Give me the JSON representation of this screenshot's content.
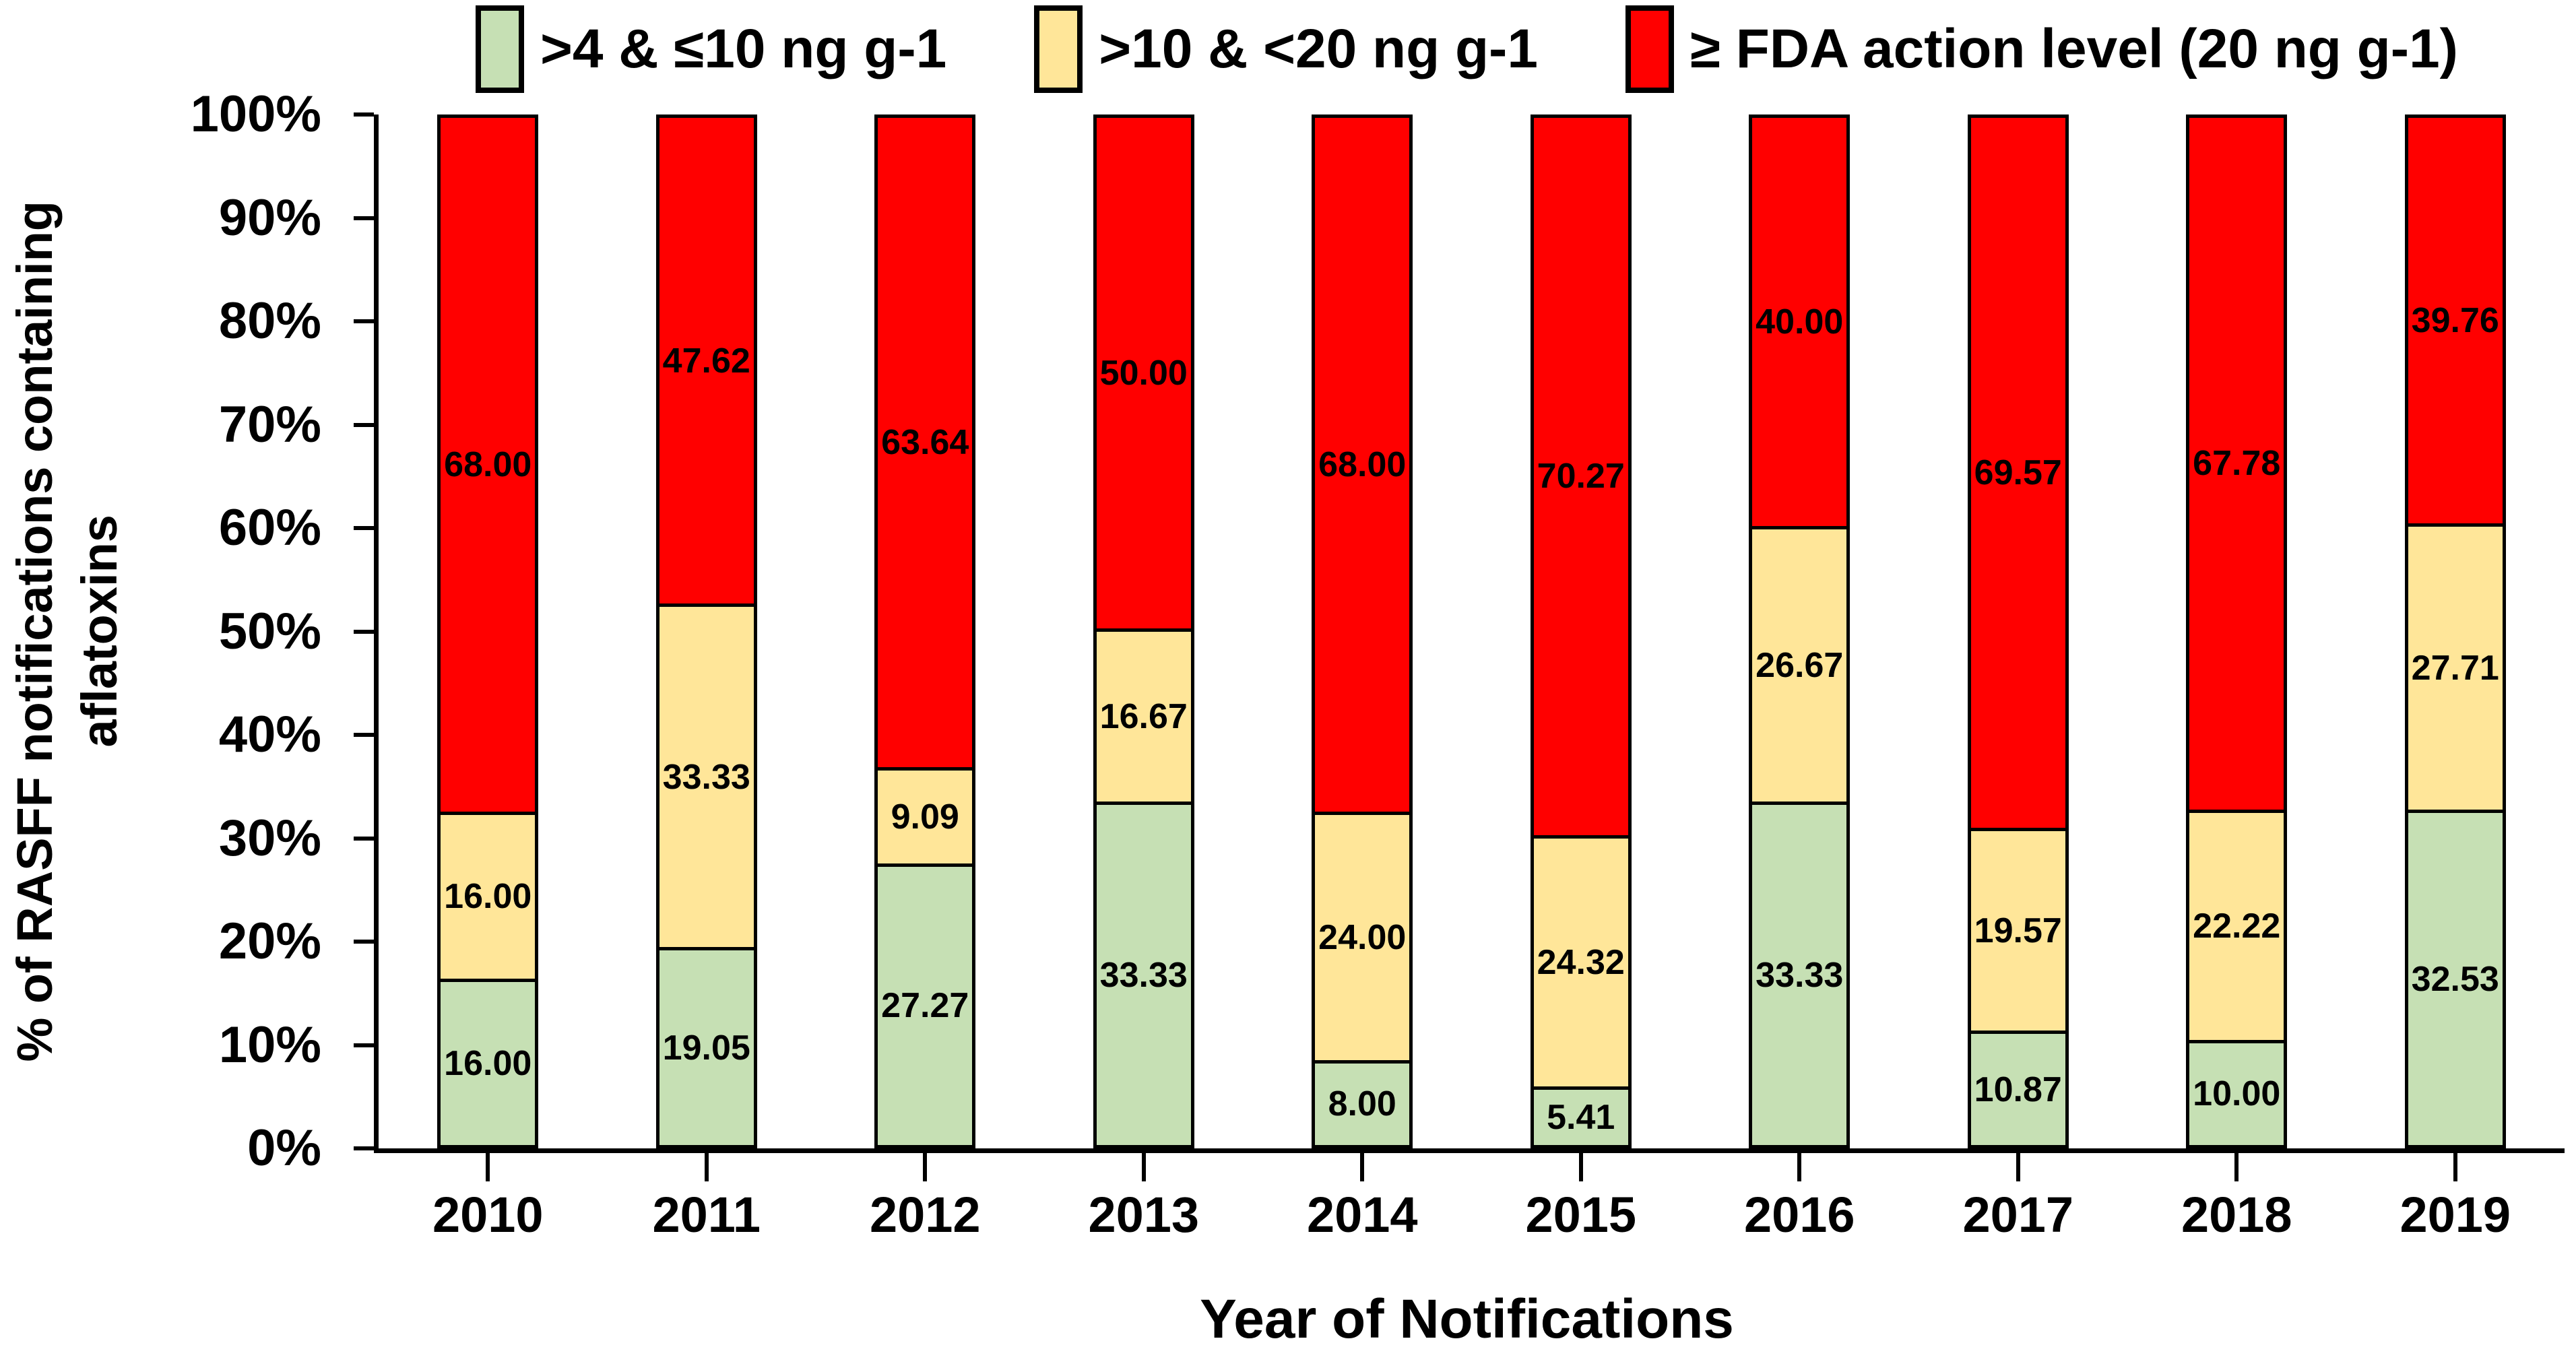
{
  "chart_data": {
    "type": "bar",
    "variant": "stacked-100-percent",
    "title": "",
    "xlabel": "Year of Notifications",
    "ylabel": "% of RASFF notifications containing aflatoxins",
    "ylabel_lines": [
      "% of RASFF notifications containing",
      "aflatoxins"
    ],
    "categories": [
      "2010",
      "2011",
      "2012",
      "2013",
      "2014",
      "2015",
      "2016",
      "2017",
      "2018",
      "2019"
    ],
    "series": [
      {
        "name": ">4 & ≤10 ng g-1",
        "color": "#C6E0B4",
        "values": [
          16.0,
          19.05,
          27.27,
          33.33,
          8.0,
          5.41,
          33.33,
          10.87,
          10.0,
          32.53
        ]
      },
      {
        "name": ">10 & <20 ng g-1",
        "color": "#FFE699",
        "values": [
          16.0,
          33.33,
          9.09,
          16.67,
          24.0,
          24.32,
          26.67,
          19.57,
          22.22,
          27.71
        ]
      },
      {
        "name": "≥ FDA action level (20 ng g-1)",
        "color": "#FF0000",
        "values": [
          68.0,
          47.62,
          63.64,
          50.0,
          68.0,
          70.27,
          40.0,
          69.57,
          67.78,
          39.76
        ]
      }
    ],
    "y_ticks": [
      "0%",
      "10%",
      "20%",
      "30%",
      "40%",
      "50%",
      "60%",
      "70%",
      "80%",
      "90%",
      "100%"
    ],
    "ylim": [
      0,
      100
    ],
    "grid": false,
    "legend_position": "top",
    "label_decimals": 2,
    "axis_color": "#000000",
    "bar_border_color": "#000000",
    "label_color": "#000000"
  }
}
